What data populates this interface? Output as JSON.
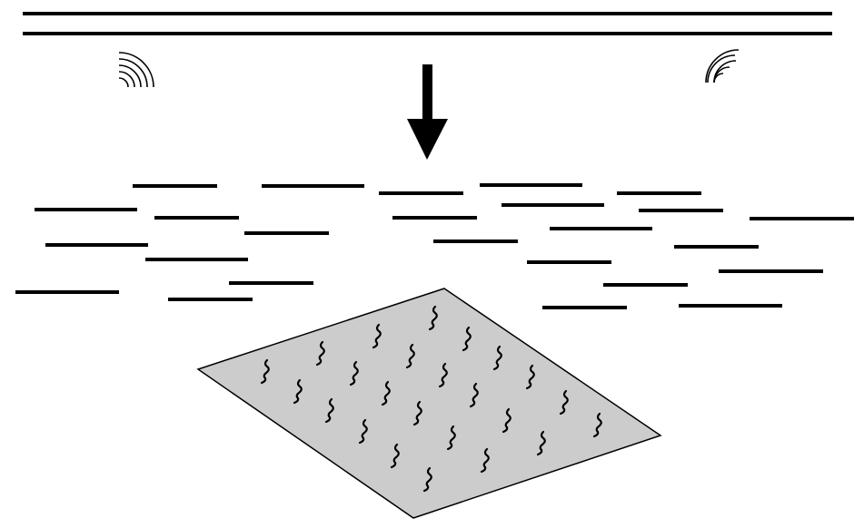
{
  "diagram": {
    "description_free": true,
    "colors": {
      "ink": "#000000",
      "background": "#ffffff",
      "plate_fill": "#cccccc"
    },
    "icons": {
      "top_boundary": "double-line",
      "left_waves": "radiation-waves-icon",
      "right_waves": "radiation-waves-icon",
      "arrow": "down-arrow-icon",
      "scatter_layer": "dashes",
      "plate": "parallelogram-plate",
      "plate_marks": "squiggle-marks"
    }
  }
}
